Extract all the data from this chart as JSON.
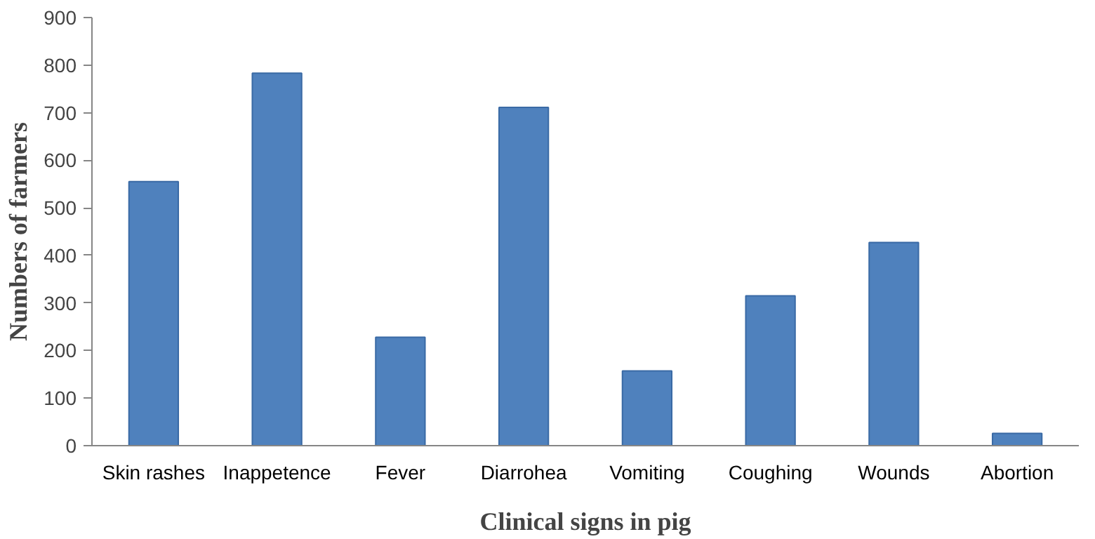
{
  "chart_data": {
    "type": "bar",
    "xlabel": "Clinical signs in pig",
    "ylabel": "Numbers of farmers",
    "categories": [
      "Skin rashes",
      "Inappetence",
      "Fever",
      "Diarrohea",
      "Vomiting",
      "Coughing",
      "Wounds",
      "Abortion"
    ],
    "values": [
      555,
      783,
      228,
      711,
      157,
      315,
      427,
      26
    ],
    "color": "#4f81bd",
    "ylim": [
      0,
      900
    ],
    "yticks": [
      0,
      100,
      200,
      300,
      400,
      500,
      600,
      700,
      800,
      900
    ],
    "grid": false
  }
}
